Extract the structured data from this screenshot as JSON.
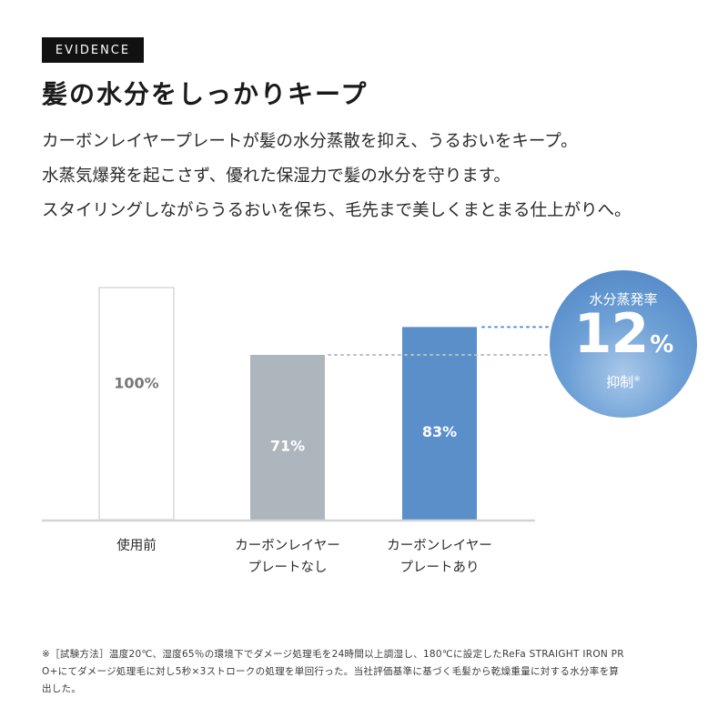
{
  "badge": "EVIDENCE",
  "title": "髪の水分をしっかりキープ",
  "description": [
    "カーボンレイヤープレートが髪の水分蒸散を抑え、うるおいをキープ。",
    "水蒸気爆発を起こさず、優れた保湿力で髪の水分を守ります。",
    "スタイリングしながらうるおいを保ち、毛先まで美しくまとまる仕上がりへ。"
  ],
  "callout": {
    "top": "水分蒸発率",
    "value": "12",
    "unit": "%",
    "bottom": "抑制",
    "mark": "※"
  },
  "colors": {
    "bar_before": "#ffffff",
    "bar_before_border": "#cfcfcf",
    "bar_without": "#adb5bd",
    "bar_with": "#5b8fca",
    "baseline": "#d4d4d4",
    "dots": "#b7bec6",
    "dots_accent": "#5b8fca"
  },
  "chart_data": {
    "type": "bar",
    "categories": [
      "使用前",
      "カーボンレイヤープレートなし",
      "カーボンレイヤープレートあり"
    ],
    "category_lines": [
      [
        "使用前"
      ],
      [
        "カーボンレイヤー",
        "プレートなし"
      ],
      [
        "カーボンレイヤー",
        "プレートあり"
      ]
    ],
    "values": [
      100,
      71,
      83
    ],
    "data_labels": [
      "100%",
      "71%",
      "83%"
    ],
    "ylim": [
      0,
      100
    ],
    "grid": false,
    "title": "",
    "xlabel": "",
    "ylabel": ""
  },
  "footnote": [
    "※［試験方法］温度20℃、湿度65％の環境下でダメージ処理毛を24時間以上調湿し、180℃に設定したReFa STRAIGHT IRON PR",
    "O+にてダメージ処理毛に対し5秒×3ストロークの処理を単回行った。当社評価基準に基づく毛髪から乾燥重量に対する水分率を算",
    "出した。"
  ]
}
